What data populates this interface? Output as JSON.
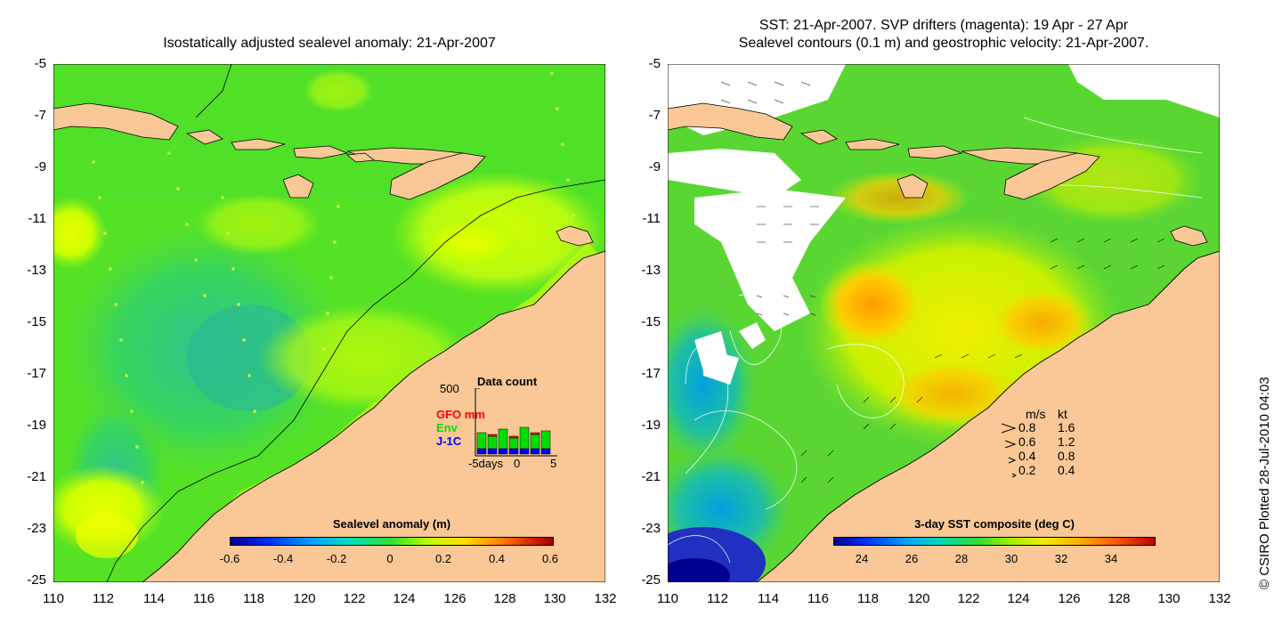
{
  "left_panel": {
    "title": "Isostatically adjusted sealevel anomaly: 21-Apr-2007",
    "y_ticks": [
      "-5",
      "-7",
      "-9",
      "-11",
      "-13",
      "-15",
      "-17",
      "-19",
      "-21",
      "-23",
      "-25"
    ],
    "x_ticks": [
      "110",
      "112",
      "114",
      "116",
      "118",
      "120",
      "122",
      "124",
      "126",
      "128",
      "130",
      "132"
    ],
    "colorbar": {
      "title": "Sealevel anomaly (m)",
      "ticks": [
        "-0.6",
        "-0.4",
        "-0.2",
        "0",
        "0.2",
        "0.4",
        "0.6"
      ]
    },
    "inset": {
      "ymax_label": "500",
      "title": "Data count",
      "series": [
        {
          "name": "GFO mm",
          "color": "#ff0000"
        },
        {
          "name": "Env",
          "color": "#00dd00"
        },
        {
          "name": "J-1C",
          "color": "#0000ff"
        }
      ],
      "xlabel_left": "-5days",
      "xlabel_mid": "0",
      "xlabel_right": "5"
    }
  },
  "right_panel": {
    "title_line1": "SST: 21-Apr-2007. SVP drifters (magenta): 19 Apr - 27 Apr",
    "title_line2": "Sealevel contours (0.1 m) and geostrophic velocity: 21-Apr-2007.",
    "y_ticks": [
      "-5",
      "-7",
      "-9",
      "-11",
      "-13",
      "-15",
      "-17",
      "-19",
      "-21",
      "-23",
      "-25"
    ],
    "x_ticks": [
      "110",
      "112",
      "114",
      "116",
      "118",
      "120",
      "122",
      "124",
      "126",
      "128",
      "130",
      "132"
    ],
    "colorbar": {
      "title": "3-day SST composite (deg C)",
      "ticks": [
        "24",
        "26",
        "28",
        "30",
        "32",
        "34"
      ]
    },
    "velocity_legend": {
      "header_ms": "m/s",
      "header_kt": "kt",
      "rows": [
        {
          "ms": "0.8",
          "kt": "1.6"
        },
        {
          "ms": "0.6",
          "kt": "1.2"
        },
        {
          "ms": "0.4",
          "kt": "0.8"
        },
        {
          "ms": "0.2",
          "kt": "0.4"
        }
      ]
    }
  },
  "credit": "© CSIRO Plotted 28-Jul-2010 04:03",
  "colors": {
    "land": "#f9c896",
    "ocean_green": "#5ee81e",
    "anomaly_low": "#000090",
    "anomaly_high": "#a00000"
  }
}
